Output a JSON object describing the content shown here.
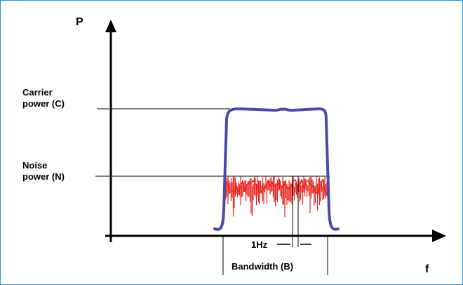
{
  "axes": {
    "y_label": "P",
    "x_label": "f"
  },
  "levels": {
    "carrier_line1": "Carrier",
    "carrier_line2": "power (C)",
    "noise_line1": "Noise",
    "noise_line2": "power (N)"
  },
  "annotations": {
    "resolution": "1Hz",
    "bandwidth": "Bandwidth (B)"
  },
  "colors": {
    "frame": "#2b8fd6",
    "carrier": "#4a4aa8",
    "noise": "#e8231c",
    "axis": "#000000"
  }
}
